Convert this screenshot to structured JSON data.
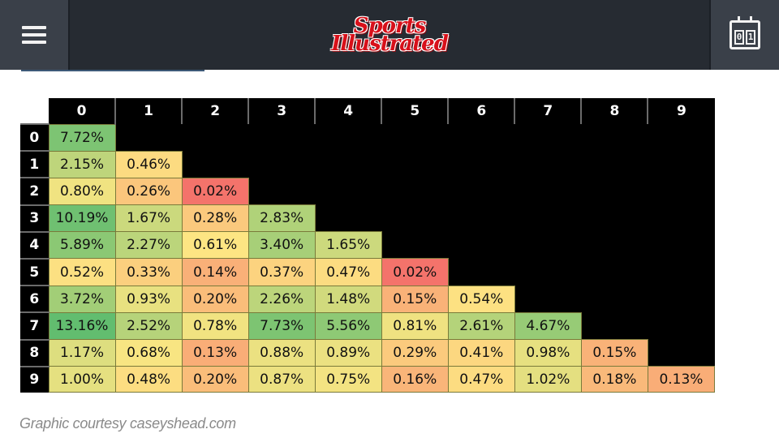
{
  "header": {
    "logo_line1": "Sports",
    "logo_line2": "Illustrated",
    "menu_icon": "hamburger-menu-icon",
    "scores_icon": "scoreboard-icon",
    "scores_digits": [
      "0",
      "1"
    ],
    "brand_color": "#d8101a",
    "bar_color": "#262b32"
  },
  "grid": {
    "columns": [
      "0",
      "1",
      "2",
      "3",
      "4",
      "5",
      "6",
      "7",
      "8",
      "9"
    ],
    "rows": [
      "0",
      "1",
      "2",
      "3",
      "4",
      "5",
      "6",
      "7",
      "8",
      "9"
    ],
    "cells": [
      [
        "7.72%"
      ],
      [
        "2.15%",
        "0.46%"
      ],
      [
        "0.80%",
        "0.26%",
        "0.02%"
      ],
      [
        "10.19%",
        "1.67%",
        "0.28%",
        "2.83%"
      ],
      [
        "5.89%",
        "2.27%",
        "0.61%",
        "3.40%",
        "1.65%"
      ],
      [
        "0.52%",
        "0.33%",
        "0.14%",
        "0.37%",
        "0.47%",
        "0.02%"
      ],
      [
        "3.72%",
        "0.93%",
        "0.20%",
        "2.26%",
        "1.48%",
        "0.15%",
        "0.54%"
      ],
      [
        "13.16%",
        "2.52%",
        "0.78%",
        "7.73%",
        "5.56%",
        "0.81%",
        "2.61%",
        "4.67%"
      ],
      [
        "1.17%",
        "0.68%",
        "0.13%",
        "0.88%",
        "0.89%",
        "0.29%",
        "0.41%",
        "0.98%",
        "0.15%"
      ],
      [
        "1.00%",
        "0.48%",
        "0.20%",
        "0.87%",
        "0.75%",
        "0.16%",
        "0.47%",
        "1.02%",
        "0.18%",
        "0.13%"
      ]
    ],
    "color_scale": {
      "low": "#f4736b",
      "mid": "#fde683",
      "high": "#62bd6f"
    }
  },
  "caption": "Graphic courtesy caseyshead.com"
}
